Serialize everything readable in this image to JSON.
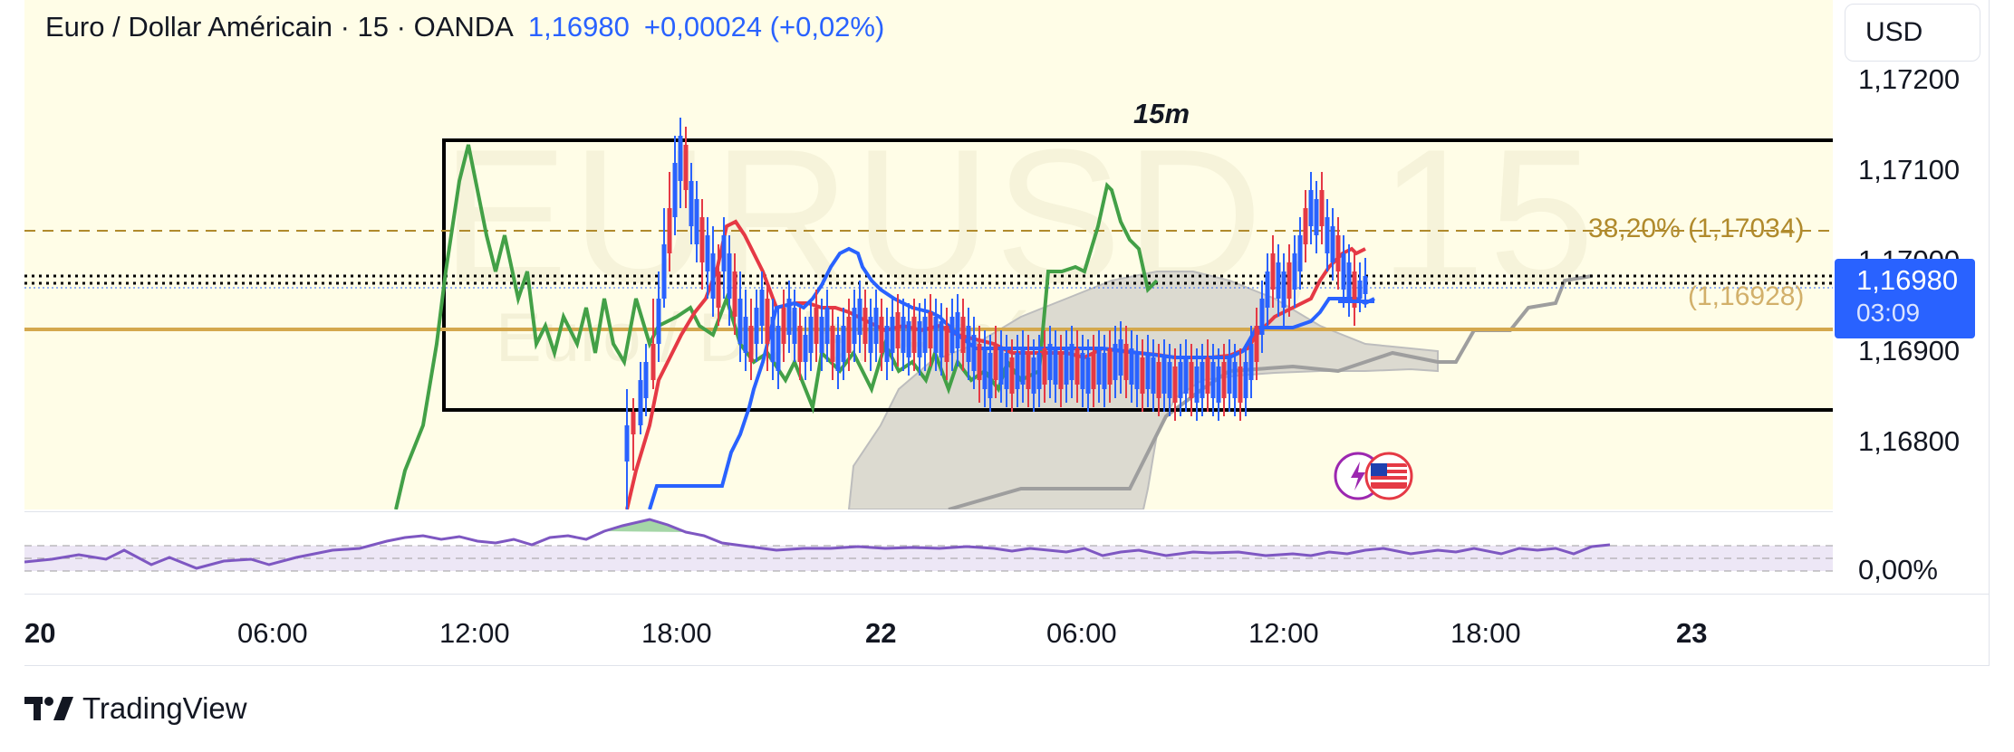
{
  "header": {
    "symbol": "Euro / Dollar Américain · 15 · OANDA",
    "price": "1,16980",
    "change": "+0,00024 (+0,02%)"
  },
  "currency_button": "USD",
  "watermark": {
    "ticker": "EURUSD, 15",
    "name": "Euro / Dollar Américain"
  },
  "drawing": {
    "box_label": "15m",
    "fib_upper": "38,20% (1,17034)",
    "fib_lower": "(1,16928)"
  },
  "price_axis": {
    "labels": [
      "1,17200",
      "1,17100",
      "1,17000",
      "1,16900",
      "1,16800"
    ],
    "last_price": "1,16980",
    "countdown": "03:09",
    "rsi_label": "0,00%"
  },
  "time_axis": {
    "labels": [
      {
        "text": "20",
        "bold": true
      },
      {
        "text": "06:00",
        "bold": false
      },
      {
        "text": "12:00",
        "bold": false
      },
      {
        "text": "18:00",
        "bold": false
      },
      {
        "text": "22",
        "bold": true
      },
      {
        "text": "06:00",
        "bold": false
      },
      {
        "text": "12:00",
        "bold": false
      },
      {
        "text": "18:00",
        "bold": false
      },
      {
        "text": "23",
        "bold": true
      }
    ]
  },
  "footer": {
    "brand": "TradingView"
  },
  "icons": [
    "currency-flag-icon",
    "lightning-icon",
    "tradingview-logo-icon"
  ],
  "colors": {
    "up": "#2962ff",
    "down": "#e53945",
    "green_line": "#43a047",
    "cloud": "#c8c8c8",
    "fib": "#b08a2c",
    "pane_bg": "#fffde7",
    "rsi": "#7e57c2"
  }
}
